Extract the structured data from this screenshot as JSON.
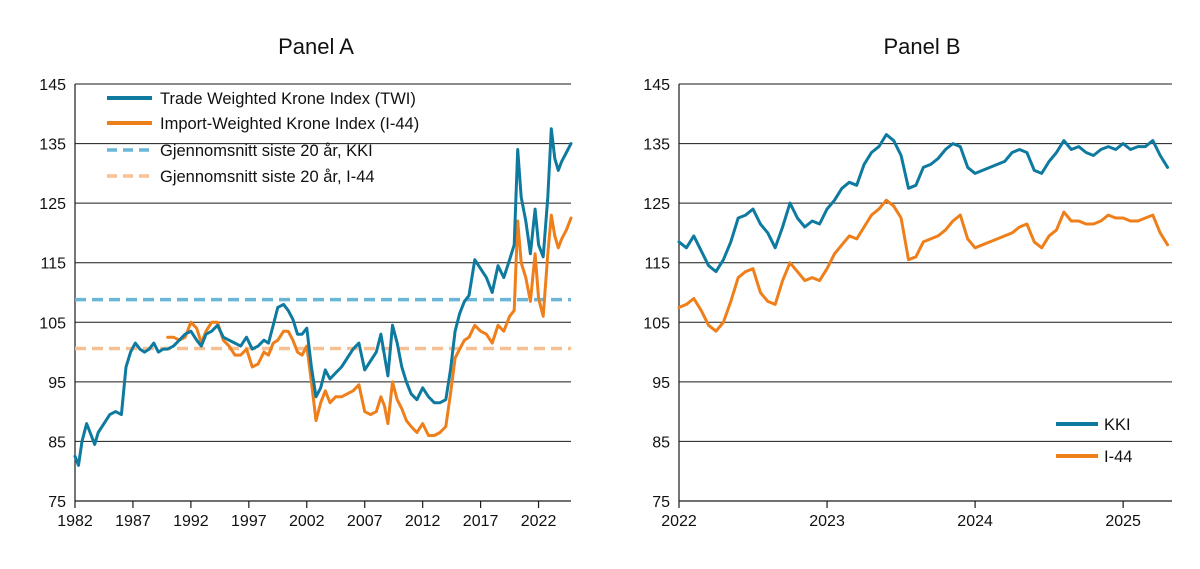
{
  "colors": {
    "kki": "#0f7aa0",
    "i44": "#ee7f1a",
    "kki_avg": "#6bb6d8",
    "i44_avg": "#f6bf94",
    "grid": "#1a1a1a"
  },
  "chart_data": [
    {
      "type": "line",
      "title": "Panel A",
      "ylim": [
        75,
        145
      ],
      "yticks": [
        "75",
        "85",
        "95",
        "105",
        "115",
        "125",
        "135",
        "145"
      ],
      "xlim": [
        1982,
        2024.8
      ],
      "xticks": [
        "1982",
        "1987",
        "1992",
        "1997",
        "2002",
        "2007",
        "2012",
        "2017",
        "2022"
      ],
      "legend": [
        "Trade Weighted Krone Index (TWI)",
        "Import-Weighted Krone Index (I-44)",
        "Gjennomsnitt siste 20 år,  KKI",
        "Gjennomsnitt siste 20 år, I-44"
      ],
      "hlines": [
        {
          "name": "Gjennomsnitt siste 20 år,  KKI",
          "value": 108.8
        },
        {
          "name": "Gjennomsnitt siste 20 år, I-44",
          "value": 100.6
        }
      ],
      "series": [
        {
          "name": "Trade Weighted Krone Index (TWI)",
          "x": [
            1982.0,
            1982.3,
            1982.6,
            1983.0,
            1983.3,
            1983.7,
            1984.0,
            1984.5,
            1985.0,
            1985.5,
            1986.0,
            1986.4,
            1986.8,
            1987.2,
            1987.6,
            1988.0,
            1988.4,
            1988.8,
            1989.2,
            1989.6,
            1990.0,
            1990.5,
            1991.0,
            1991.5,
            1992.0,
            1992.5,
            1992.9,
            1993.3,
            1993.8,
            1994.3,
            1994.8,
            1995.3,
            1995.8,
            1996.3,
            1996.8,
            1997.3,
            1997.8,
            1998.3,
            1998.7,
            1999.1,
            1999.5,
            2000.0,
            2000.4,
            2000.8,
            2001.2,
            2001.6,
            2002.0,
            2002.4,
            2002.8,
            2003.2,
            2003.6,
            2004.0,
            2004.5,
            2005.0,
            2005.5,
            2006.0,
            2006.5,
            2007.0,
            2007.5,
            2008.0,
            2008.4,
            2008.7,
            2009.0,
            2009.4,
            2009.8,
            2010.2,
            2010.6,
            2011.0,
            2011.5,
            2012.0,
            2012.5,
            2013.0,
            2013.5,
            2014.0,
            2014.4,
            2014.8,
            2015.2,
            2015.6,
            2016.0,
            2016.5,
            2017.0,
            2017.5,
            2018.0,
            2018.5,
            2019.0,
            2019.5,
            2019.9,
            2020.2,
            2020.5,
            2020.9,
            2021.3,
            2021.7,
            2022.0,
            2022.4,
            2022.8,
            2023.1,
            2023.4,
            2023.7,
            2024.0,
            2024.4,
            2024.8
          ],
          "y": [
            82.5,
            81.0,
            85.0,
            88.0,
            86.5,
            84.5,
            86.5,
            88.0,
            89.5,
            90.0,
            89.5,
            97.5,
            100.0,
            101.5,
            100.5,
            100.0,
            100.5,
            101.5,
            100.0,
            100.5,
            100.5,
            101.0,
            102.0,
            103.0,
            103.5,
            102.0,
            101.0,
            103.0,
            103.5,
            104.5,
            102.5,
            102.0,
            101.5,
            101.0,
            102.5,
            100.5,
            101.0,
            102.0,
            101.5,
            104.5,
            107.5,
            108.0,
            107.0,
            105.5,
            103.0,
            103.0,
            104.0,
            97.5,
            92.5,
            94.0,
            97.0,
            95.5,
            96.5,
            97.5,
            99.0,
            100.5,
            101.5,
            97.0,
            98.5,
            100.0,
            103.0,
            99.5,
            96.0,
            104.5,
            101.5,
            97.5,
            95.0,
            93.0,
            92.0,
            94.0,
            92.5,
            91.5,
            91.5,
            92.0,
            97.0,
            103.5,
            106.5,
            108.5,
            109.5,
            115.5,
            114.0,
            112.5,
            110.0,
            114.5,
            112.5,
            115.5,
            118.0,
            134.0,
            126.0,
            122.0,
            116.5,
            124.0,
            118.0,
            116.0,
            126.0,
            137.5,
            132.5,
            130.5,
            132.0,
            133.5,
            135.0
          ]
        },
        {
          "name": "Import-Weighted Krone Index (I-44)",
          "x": [
            1990.0,
            1990.5,
            1991.0,
            1991.5,
            1992.0,
            1992.5,
            1992.9,
            1993.3,
            1993.8,
            1994.3,
            1994.8,
            1995.3,
            1995.8,
            1996.3,
            1996.8,
            1997.3,
            1997.8,
            1998.3,
            1998.7,
            1999.1,
            1999.5,
            2000.0,
            2000.4,
            2000.8,
            2001.2,
            2001.6,
            2002.0,
            2002.4,
            2002.8,
            2003.2,
            2003.6,
            2004.0,
            2004.5,
            2005.0,
            2005.5,
            2006.0,
            2006.5,
            2007.0,
            2007.5,
            2008.0,
            2008.4,
            2008.7,
            2009.0,
            2009.4,
            2009.8,
            2010.2,
            2010.6,
            2011.0,
            2011.5,
            2012.0,
            2012.5,
            2013.0,
            2013.5,
            2014.0,
            2014.4,
            2014.8,
            2015.2,
            2015.6,
            2016.0,
            2016.5,
            2017.0,
            2017.5,
            2018.0,
            2018.5,
            2019.0,
            2019.5,
            2019.9,
            2020.2,
            2020.5,
            2020.9,
            2021.3,
            2021.7,
            2022.0,
            2022.4,
            2022.8,
            2023.1,
            2023.4,
            2023.7,
            2024.0,
            2024.4,
            2024.8
          ],
          "y": [
            102.5,
            102.5,
            102.0,
            102.5,
            105.0,
            104.0,
            101.5,
            103.5,
            105.0,
            105.0,
            102.0,
            101.0,
            99.5,
            99.5,
            100.5,
            97.5,
            98.0,
            100.0,
            99.5,
            101.5,
            102.0,
            103.5,
            103.5,
            102.0,
            100.0,
            99.5,
            101.0,
            95.0,
            88.5,
            91.5,
            93.5,
            91.5,
            92.5,
            92.5,
            93.0,
            93.5,
            94.5,
            90.0,
            89.5,
            90.0,
            92.5,
            91.0,
            88.0,
            95.0,
            92.0,
            90.5,
            88.5,
            87.5,
            86.5,
            88.0,
            86.0,
            86.0,
            86.5,
            87.5,
            93.0,
            99.0,
            100.5,
            102.0,
            102.5,
            104.5,
            103.5,
            103.0,
            101.5,
            104.5,
            103.5,
            106.0,
            107.0,
            122.0,
            115.0,
            112.5,
            108.5,
            116.5,
            109.0,
            106.0,
            116.5,
            123.0,
            119.5,
            117.5,
            119.0,
            120.5,
            122.5
          ]
        }
      ]
    },
    {
      "type": "line",
      "title": "Panel B",
      "ylim": [
        75,
        145
      ],
      "yticks": [
        "75",
        "85",
        "95",
        "105",
        "115",
        "125",
        "135",
        "145"
      ],
      "xlim": [
        2022.0,
        2025.33
      ],
      "xticks": [
        "2022",
        "2023",
        "2024",
        "2025"
      ],
      "legend": [
        "KKI",
        "I-44"
      ],
      "series": [
        {
          "name": "KKI",
          "x": [
            2022.0,
            2022.05,
            2022.1,
            2022.15,
            2022.2,
            2022.25,
            2022.3,
            2022.35,
            2022.4,
            2022.45,
            2022.5,
            2022.55,
            2022.6,
            2022.65,
            2022.7,
            2022.75,
            2022.8,
            2022.85,
            2022.9,
            2022.95,
            2023.0,
            2023.05,
            2023.1,
            2023.15,
            2023.2,
            2023.25,
            2023.3,
            2023.35,
            2023.4,
            2023.45,
            2023.5,
            2023.55,
            2023.6,
            2023.65,
            2023.7,
            2023.75,
            2023.8,
            2023.85,
            2023.9,
            2023.95,
            2024.0,
            2024.05,
            2024.1,
            2024.15,
            2024.2,
            2024.25,
            2024.3,
            2024.35,
            2024.4,
            2024.45,
            2024.5,
            2024.55,
            2024.6,
            2024.65,
            2024.7,
            2024.75,
            2024.8,
            2024.85,
            2024.9,
            2024.95,
            2025.0,
            2025.05,
            2025.1,
            2025.15,
            2025.2,
            2025.25,
            2025.3
          ],
          "y": [
            118.5,
            117.5,
            119.5,
            117.0,
            114.5,
            113.5,
            115.5,
            118.5,
            122.5,
            123.0,
            124.0,
            121.5,
            120.0,
            117.5,
            121.0,
            125.0,
            122.5,
            121.0,
            122.0,
            121.5,
            124.0,
            125.5,
            127.5,
            128.5,
            128.0,
            131.5,
            133.5,
            134.5,
            136.5,
            135.5,
            133.0,
            127.5,
            128.0,
            131.0,
            131.5,
            132.5,
            134.0,
            135.0,
            134.5,
            131.0,
            130.0,
            130.5,
            131.0,
            131.5,
            132.0,
            133.5,
            134.0,
            133.5,
            130.5,
            130.0,
            132.0,
            133.5,
            135.5,
            134.0,
            134.5,
            133.5,
            133.0,
            134.0,
            134.5,
            134.0,
            135.0,
            134.0,
            134.5,
            134.5,
            135.5,
            133.0,
            131.0
          ]
        },
        {
          "name": "I-44",
          "x": [
            2022.0,
            2022.05,
            2022.1,
            2022.15,
            2022.2,
            2022.25,
            2022.3,
            2022.35,
            2022.4,
            2022.45,
            2022.5,
            2022.55,
            2022.6,
            2022.65,
            2022.7,
            2022.75,
            2022.8,
            2022.85,
            2022.9,
            2022.95,
            2023.0,
            2023.05,
            2023.1,
            2023.15,
            2023.2,
            2023.25,
            2023.3,
            2023.35,
            2023.4,
            2023.45,
            2023.5,
            2023.55,
            2023.6,
            2023.65,
            2023.7,
            2023.75,
            2023.8,
            2023.85,
            2023.9,
            2023.95,
            2024.0,
            2024.05,
            2024.1,
            2024.15,
            2024.2,
            2024.25,
            2024.3,
            2024.35,
            2024.4,
            2024.45,
            2024.5,
            2024.55,
            2024.6,
            2024.65,
            2024.7,
            2024.75,
            2024.8,
            2024.85,
            2024.9,
            2024.95,
            2025.0,
            2025.05,
            2025.1,
            2025.15,
            2025.2,
            2025.25,
            2025.3
          ],
          "y": [
            107.5,
            108.0,
            109.0,
            107.0,
            104.5,
            103.5,
            105.0,
            108.5,
            112.5,
            113.5,
            114.0,
            110.0,
            108.5,
            108.0,
            112.0,
            115.0,
            113.5,
            112.0,
            112.5,
            112.0,
            114.0,
            116.5,
            118.0,
            119.5,
            119.0,
            121.0,
            123.0,
            124.0,
            125.5,
            124.5,
            122.5,
            115.5,
            116.0,
            118.5,
            119.0,
            119.5,
            120.5,
            122.0,
            123.0,
            119.0,
            117.5,
            118.0,
            118.5,
            119.0,
            119.5,
            120.0,
            121.0,
            121.5,
            118.5,
            117.5,
            119.5,
            120.5,
            123.5,
            122.0,
            122.0,
            121.5,
            121.5,
            122.0,
            123.0,
            122.5,
            122.5,
            122.0,
            122.0,
            122.5,
            123.0,
            120.0,
            118.0
          ]
        }
      ]
    }
  ]
}
